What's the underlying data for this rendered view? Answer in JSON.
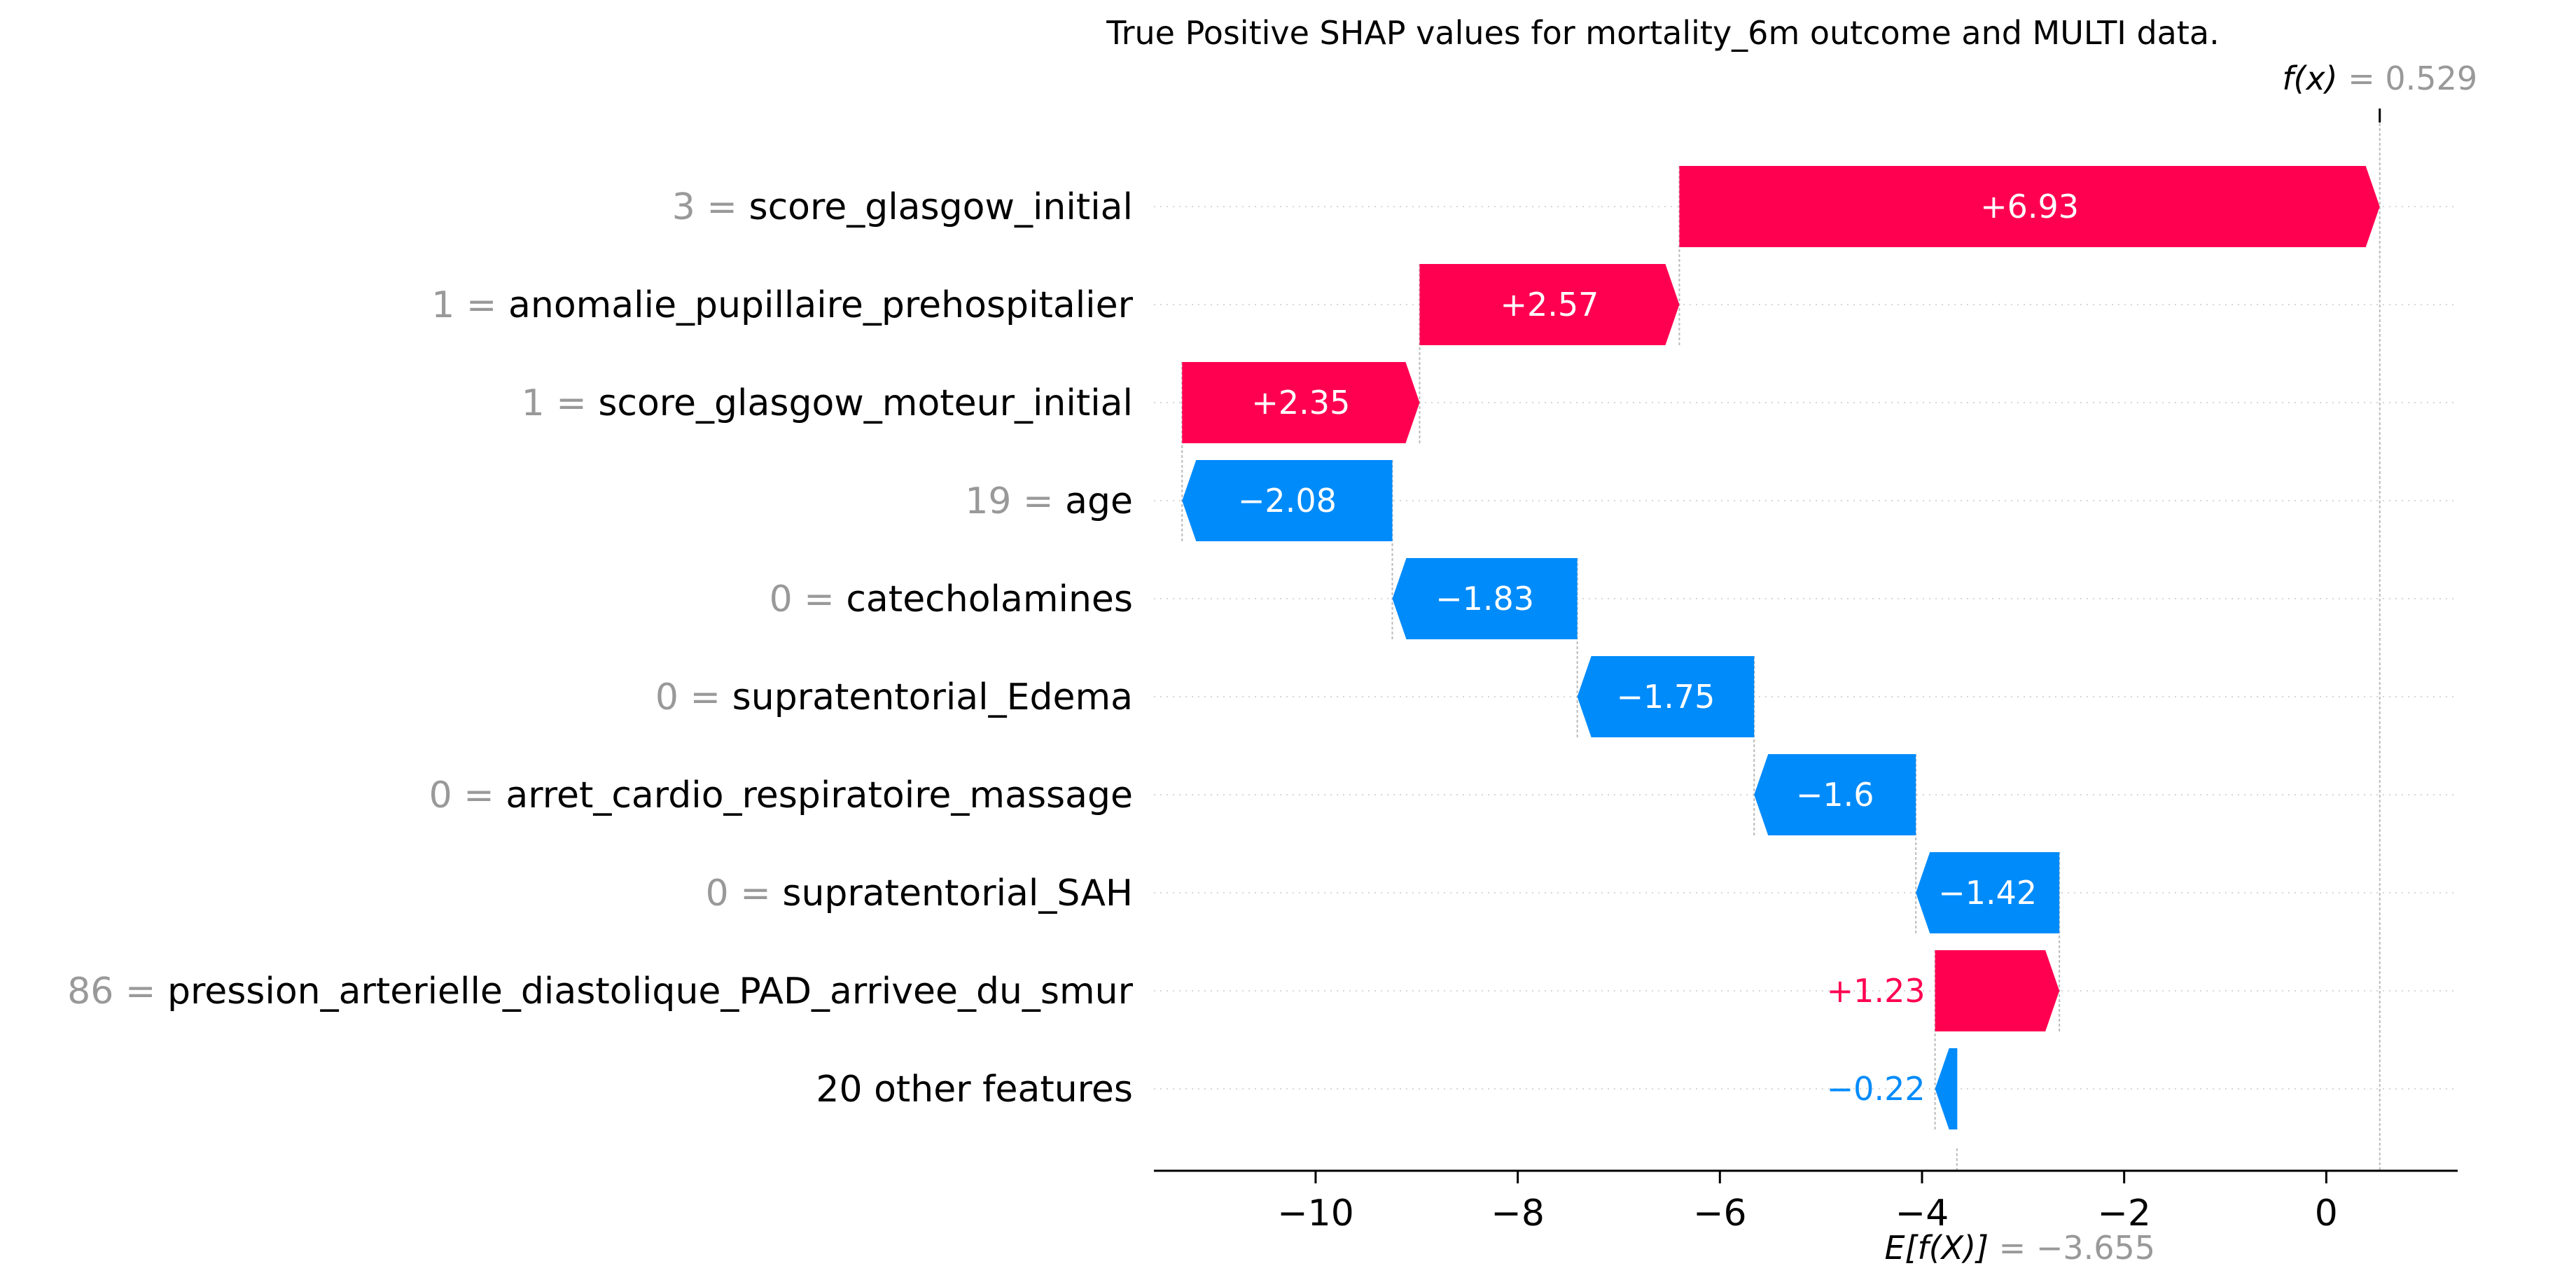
{
  "chart_data": {
    "type": "waterfall",
    "title": "True Positive SHAP values for mortality_6m outcome and MULTI data.",
    "fx": {
      "label": "f(x)",
      "eq": "= 0.529",
      "value": 0.529
    },
    "base": {
      "label": "E[f(X)]",
      "eq": "= −3.655",
      "value": -3.655
    },
    "xlim": [
      -11.6,
      1.3
    ],
    "xticks": [
      {
        "value": -10,
        "label": "−10"
      },
      {
        "value": -8,
        "label": "−8"
      },
      {
        "value": -6,
        "label": "−6"
      },
      {
        "value": -4,
        "label": "−4"
      },
      {
        "value": -2,
        "label": "−2"
      },
      {
        "value": 0,
        "label": "0"
      }
    ],
    "features": [
      {
        "value": "3",
        "name": "score_glasgow_initial",
        "shap": 6.93,
        "label": "+6.93"
      },
      {
        "value": "1",
        "name": "anomalie_pupillaire_prehospitalier",
        "shap": 2.57,
        "label": "+2.57"
      },
      {
        "value": "1",
        "name": "score_glasgow_moteur_initial",
        "shap": 2.35,
        "label": "+2.35"
      },
      {
        "value": "19",
        "name": "age",
        "shap": -2.08,
        "label": "−2.08"
      },
      {
        "value": "0",
        "name": "catecholamines",
        "shap": -1.83,
        "label": "−1.83"
      },
      {
        "value": "0",
        "name": "supratentorial_Edema",
        "shap": -1.75,
        "label": "−1.75"
      },
      {
        "value": "0",
        "name": "arret_cardio_respiratoire_massage",
        "shap": -1.6,
        "label": "−1.6"
      },
      {
        "value": "0",
        "name": "supratentorial_SAH",
        "shap": -1.42,
        "label": "−1.42"
      },
      {
        "value": "86",
        "name": "pression_arterielle_diastolique_PAD_arrivee_du_smur",
        "shap": 1.23,
        "label": "+1.23"
      },
      {
        "value": "",
        "name": "20 other features",
        "shap": -0.22,
        "label": "−0.22"
      }
    ],
    "colors": {
      "positive": "#ff0051",
      "negative": "#008bfb",
      "grey_text": "#999999",
      "text": "#000000"
    },
    "grid": true
  }
}
